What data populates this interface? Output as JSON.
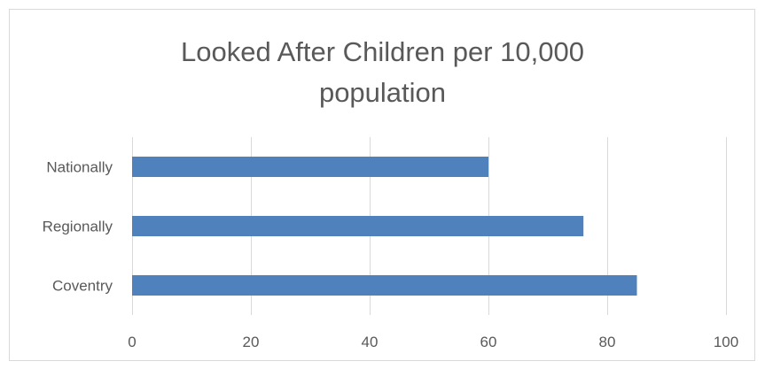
{
  "chart_data": {
    "type": "bar",
    "orientation": "horizontal",
    "title": "Looked After Children per 10,000 population",
    "title_lines": [
      "Looked After Children per 10,000",
      "population"
    ],
    "categories": [
      "Nationally",
      "Regionally",
      "Coventry"
    ],
    "values": [
      60,
      76,
      85
    ],
    "xlim": [
      0,
      100
    ],
    "xticks": [
      0,
      20,
      40,
      60,
      80,
      100
    ],
    "xlabel": "",
    "ylabel": "",
    "grid": true,
    "legend": "none",
    "bar_color": "#4f81bd",
    "grid_color": "#d9d9d9"
  }
}
